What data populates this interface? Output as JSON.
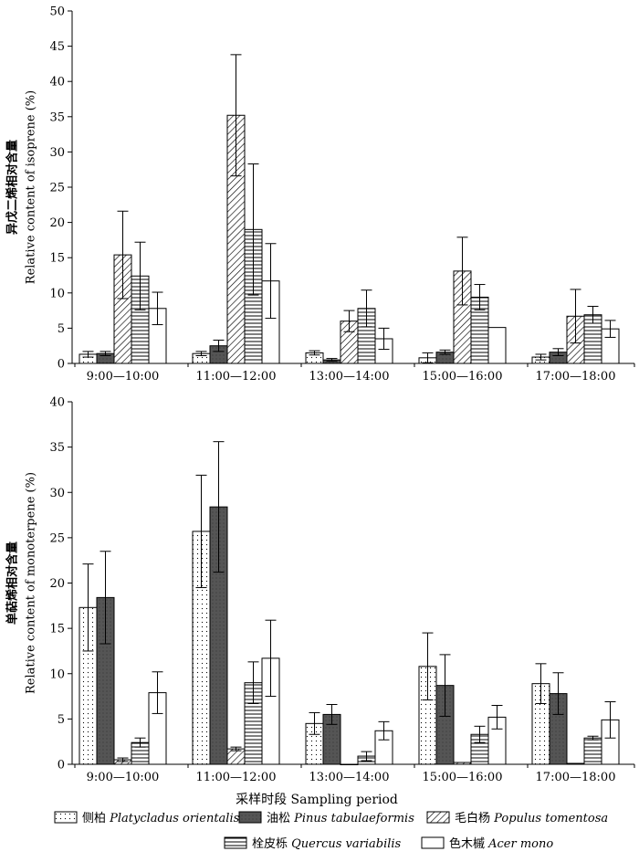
{
  "chart_data": [
    {
      "type": "bar",
      "id": "top",
      "categories": [
        "9:00—10:00",
        "11:00—12:00",
        "13:00—14:00",
        "15:00—16:00",
        "17:00—18:00"
      ],
      "ylabel_cn": "异戊二烯相对含量",
      "ylabel_en": "Relative content of isoprene (%)",
      "ylim": [
        0,
        50
      ],
      "yticks": [
        0,
        5,
        10,
        15,
        20,
        25,
        30,
        35,
        40,
        45,
        50
      ],
      "series": [
        {
          "name": "侧柏 Platycladus orientalis",
          "values": [
            1.3,
            1.4,
            1.5,
            0.8,
            0.9
          ],
          "errors": [
            0.4,
            0.3,
            0.3,
            0.7,
            0.4
          ]
        },
        {
          "name": "油松 Pinus tabulaeformis",
          "values": [
            1.4,
            2.5,
            0.5,
            1.6,
            1.6
          ],
          "errors": [
            0.3,
            0.8,
            0.2,
            0.3,
            0.5
          ]
        },
        {
          "name": "毛白杨 Populus tomentosa",
          "values": [
            15.4,
            35.2,
            6.0,
            13.1,
            6.7
          ],
          "errors": [
            6.2,
            8.6,
            1.5,
            4.8,
            3.8
          ]
        },
        {
          "name": "栓皮栎 Quercus variabilis",
          "values": [
            12.4,
            19.0,
            7.8,
            9.4,
            6.9
          ],
          "errors": [
            4.8,
            9.3,
            2.6,
            1.8,
            1.2
          ]
        },
        {
          "name": "色木槭 Acer mono",
          "values": [
            7.8,
            11.7,
            3.5,
            5.1,
            4.9
          ],
          "errors": [
            2.3,
            5.3,
            1.5,
            0.0,
            1.2
          ]
        }
      ]
    },
    {
      "type": "bar",
      "id": "bottom",
      "categories": [
        "9:00—10:00",
        "11:00—12:00",
        "13:00—14:00",
        "15:00—16:00",
        "17:00—18:00"
      ],
      "ylabel_cn": "单萜烯相对含量",
      "ylabel_en": "Relative content of monoterpene (%)",
      "xlabel": "采样时段 Sampling period",
      "ylim": [
        0,
        40
      ],
      "yticks": [
        0,
        5,
        10,
        15,
        20,
        25,
        30,
        35,
        40
      ],
      "series": [
        {
          "name": "侧柏 Platycladus orientalis",
          "values": [
            17.3,
            25.7,
            4.5,
            10.8,
            8.9
          ],
          "errors": [
            4.8,
            6.2,
            1.2,
            3.7,
            2.2
          ]
        },
        {
          "name": "油松 Pinus tabulaeformis",
          "values": [
            18.4,
            28.4,
            5.5,
            8.7,
            7.8
          ],
          "errors": [
            5.1,
            7.2,
            1.1,
            3.4,
            2.3
          ]
        },
        {
          "name": "毛白杨 Populus tomentosa",
          "values": [
            0.5,
            1.7,
            0.0,
            0.2,
            0.1
          ],
          "errors": [
            0.2,
            0.2,
            0.0,
            0.0,
            0.0
          ]
        },
        {
          "name": "栓皮栎 Quercus variabilis",
          "values": [
            2.4,
            9.0,
            0.9,
            3.3,
            2.9
          ],
          "errors": [
            0.5,
            2.3,
            0.5,
            0.9,
            0.2
          ]
        },
        {
          "name": "色木槭 Acer mono",
          "values": [
            7.9,
            11.7,
            3.7,
            5.2,
            4.9
          ],
          "errors": [
            2.3,
            4.2,
            1.0,
            1.3,
            2.0
          ]
        }
      ]
    }
  ],
  "legend": [
    {
      "cn": "侧柏",
      "latin": "Platycladus orientalis"
    },
    {
      "cn": "油松",
      "latin": "Pinus tabulaeformis"
    },
    {
      "cn": "毛白杨",
      "latin": "Populus tomentosa"
    },
    {
      "cn": "栓皮栎",
      "latin": "Quercus variabilis"
    },
    {
      "cn": "色木槭",
      "latin": "Acer mono"
    }
  ],
  "colors": {
    "ink": "#000000",
    "bg": "#ffffff",
    "dark_fill": "#555555"
  }
}
